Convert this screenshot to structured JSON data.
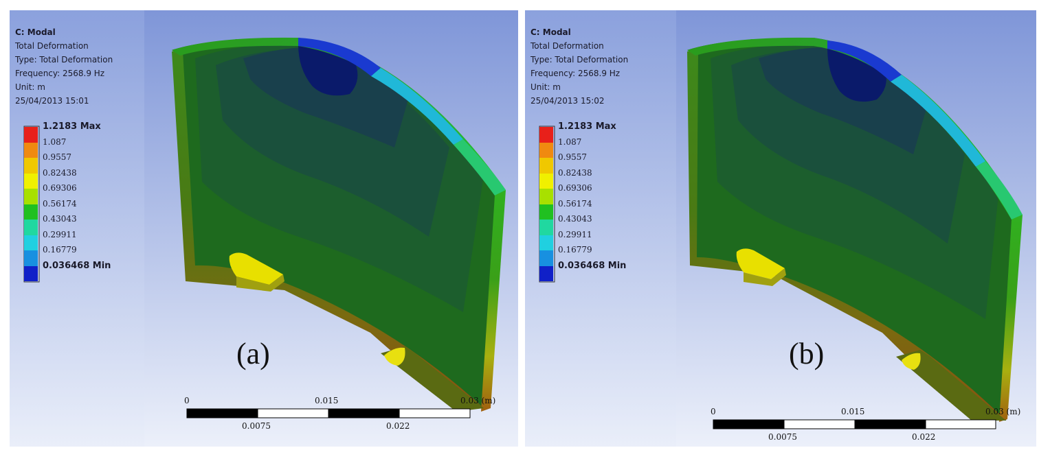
{
  "panels": [
    {
      "id": "a",
      "info": {
        "title": "C: Modal",
        "result": "Total Deformation",
        "type": "Type: Total Deformation",
        "frequency": "Frequency: 2568.9 Hz",
        "unit": "Unit: m",
        "timestamp": "25/04/2013 15:01"
      },
      "legend": [
        {
          "label": "1.2183 Max",
          "color": "#e8201a",
          "bold": true
        },
        {
          "label": "1.087",
          "color": "#f08a10",
          "bold": false
        },
        {
          "label": "0.9557",
          "color": "#f0c800",
          "bold": false
        },
        {
          "label": "0.82438",
          "color": "#f0f000",
          "bold": false
        },
        {
          "label": "0.69306",
          "color": "#a8e000",
          "bold": false
        },
        {
          "label": "0.56174",
          "color": "#20c020",
          "bold": false
        },
        {
          "label": "0.43043",
          "color": "#20d8a0",
          "bold": false
        },
        {
          "label": "0.29911",
          "color": "#20d0e0",
          "bold": false
        },
        {
          "label": "0.16779",
          "color": "#1890e0",
          "bold": false
        },
        {
          "label": "0.036468 Min",
          "color": "#1020c8",
          "bold": true
        }
      ],
      "caption": "(a)",
      "scale": {
        "zero": "0",
        "mid_top": "0.015",
        "end": "0.03 (m)",
        "q1": "0.0075",
        "q3": "0.022"
      }
    },
    {
      "id": "b",
      "info": {
        "title": "C: Modal",
        "result": "Total Deformation",
        "type": "Type: Total Deformation",
        "frequency": "Frequency: 2568.9 Hz",
        "unit": "Unit: m",
        "timestamp": "25/04/2013 15:02"
      },
      "legend": [
        {
          "label": "1.2183 Max",
          "color": "#e8201a",
          "bold": true
        },
        {
          "label": "1.087",
          "color": "#f08a10",
          "bold": false
        },
        {
          "label": "0.9557",
          "color": "#f0c800",
          "bold": false
        },
        {
          "label": "0.82438",
          "color": "#f0f000",
          "bold": false
        },
        {
          "label": "0.69306",
          "color": "#a8e000",
          "bold": false
        },
        {
          "label": "0.56174",
          "color": "#20c020",
          "bold": false
        },
        {
          "label": "0.43043",
          "color": "#20d8a0",
          "bold": false
        },
        {
          "label": "0.29911",
          "color": "#20d0e0",
          "bold": false
        },
        {
          "label": "0.16779",
          "color": "#1890e0",
          "bold": false
        },
        {
          "label": "0.036468 Min",
          "color": "#1020c8",
          "bold": true
        }
      ],
      "caption": "(b)",
      "scale": {
        "zero": "0",
        "mid_top": "0.015",
        "end": "0.03 (m)",
        "q1": "0.0075",
        "q3": "0.022"
      }
    }
  ]
}
